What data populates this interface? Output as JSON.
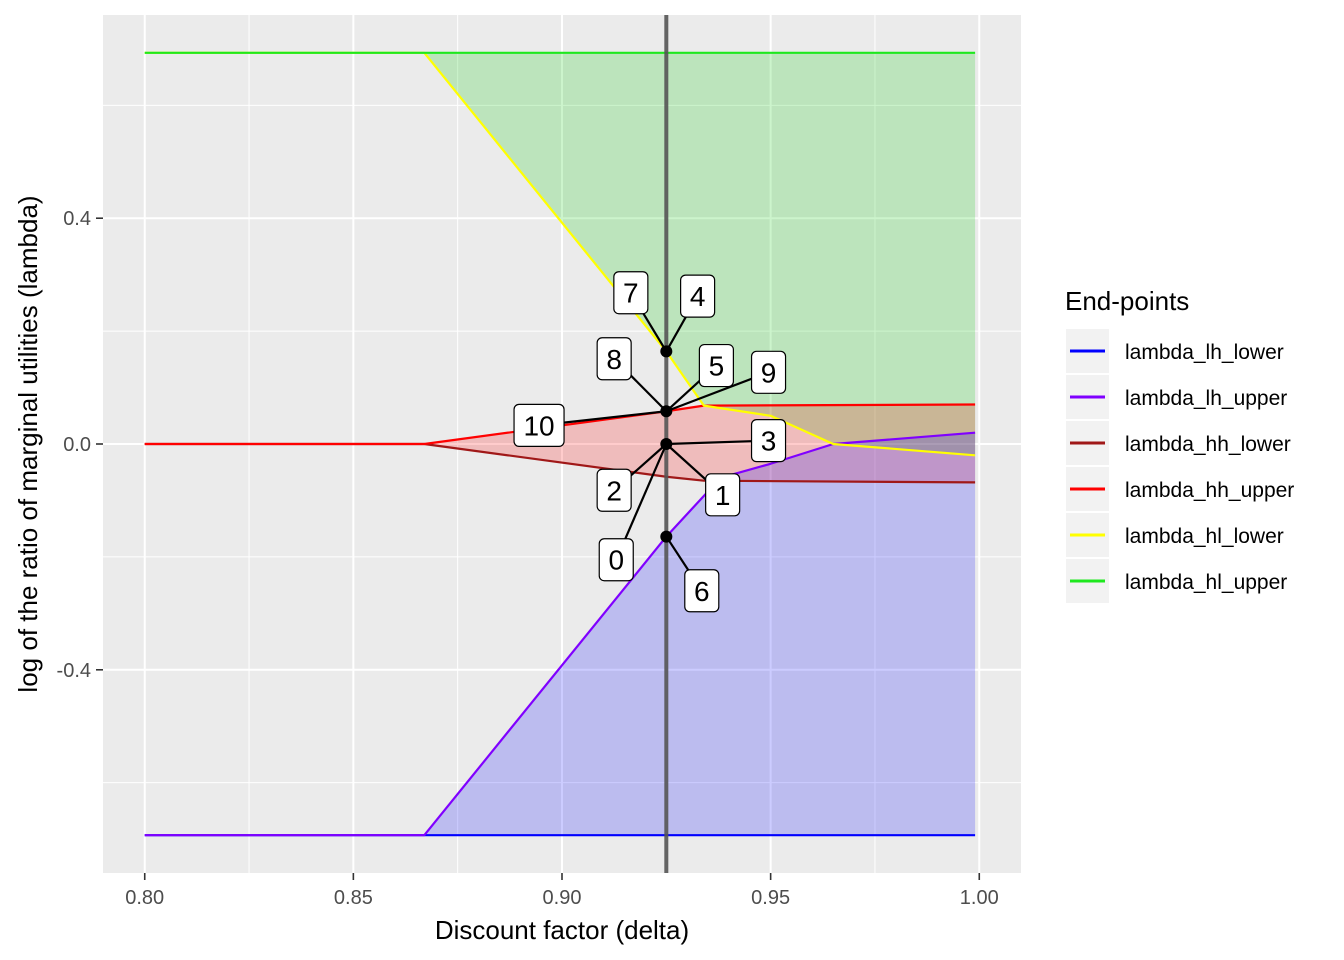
{
  "chart_data": {
    "type": "area",
    "xlabel": "Discount factor (delta)",
    "ylabel": "log of the ratio of marginal utilities (lambda)",
    "xlim": [
      0.79,
      1.01
    ],
    "ylim": [
      -0.76,
      0.76
    ],
    "x_ticks": [
      0.8,
      0.85,
      0.9,
      0.95,
      1.0
    ],
    "x_tick_labels": [
      "0.80",
      "0.85",
      "0.90",
      "0.95",
      "1.00"
    ],
    "y_ticks": [
      -0.4,
      0.0,
      0.4
    ],
    "y_tick_labels": [
      "-0.4",
      "0.0",
      "0.4"
    ],
    "grid": true,
    "legend": {
      "title": "End-points",
      "position": "right"
    },
    "vline_x": 0.925,
    "series": [
      {
        "name": "lambda_lh_lower",
        "color": "#0000FF",
        "points": [
          [
            0.8,
            -0.693
          ],
          [
            0.999,
            -0.693
          ]
        ]
      },
      {
        "name": "lambda_lh_upper",
        "color": "#8000FF",
        "points": [
          [
            0.8,
            -0.693
          ],
          [
            0.867,
            -0.693
          ],
          [
            0.925,
            -0.164
          ],
          [
            0.938,
            -0.06
          ],
          [
            0.95,
            -0.035
          ],
          [
            0.965,
            0.0
          ],
          [
            0.999,
            0.02
          ]
        ]
      },
      {
        "name": "lambda_hh_lower",
        "color": "#A01818",
        "points": [
          [
            0.8,
            0.0
          ],
          [
            0.867,
            0.0
          ],
          [
            0.925,
            -0.058
          ],
          [
            0.934,
            -0.065
          ],
          [
            0.999,
            -0.068
          ]
        ]
      },
      {
        "name": "lambda_hh_upper",
        "color": "#FF0000",
        "points": [
          [
            0.8,
            0.0
          ],
          [
            0.867,
            0.0
          ],
          [
            0.925,
            0.058
          ],
          [
            0.934,
            0.068
          ],
          [
            0.999,
            0.07
          ]
        ]
      },
      {
        "name": "lambda_hl_lower",
        "color": "#FFFF00",
        "points": [
          [
            0.8,
            0.693
          ],
          [
            0.867,
            0.693
          ],
          [
            0.925,
            0.164
          ],
          [
            0.934,
            0.068
          ],
          [
            0.95,
            0.05
          ],
          [
            0.965,
            0.0
          ],
          [
            0.999,
            -0.02
          ]
        ]
      },
      {
        "name": "lambda_hl_upper",
        "color": "#1EE81E",
        "points": [
          [
            0.8,
            0.693
          ],
          [
            0.999,
            0.693
          ]
        ]
      }
    ],
    "ribbons": [
      {
        "fill": "#00C800",
        "opacity": 0.2,
        "upper": [
          [
            0.867,
            0.693
          ],
          [
            0.999,
            0.693
          ]
        ],
        "lower": [
          [
            0.867,
            0.693
          ],
          [
            0.925,
            0.164
          ],
          [
            0.934,
            0.068
          ],
          [
            0.95,
            0.05
          ],
          [
            0.965,
            0.0
          ],
          [
            0.999,
            -0.02
          ]
        ]
      },
      {
        "fill": "#FF0000",
        "opacity": 0.2,
        "upper": [
          [
            0.867,
            0.0
          ],
          [
            0.925,
            0.058
          ],
          [
            0.934,
            0.068
          ],
          [
            0.999,
            0.07
          ]
        ],
        "lower": [
          [
            0.867,
            0.0
          ],
          [
            0.925,
            -0.058
          ],
          [
            0.934,
            -0.065
          ],
          [
            0.999,
            -0.068
          ]
        ]
      },
      {
        "fill": "#0000FF",
        "opacity": 0.2,
        "upper": [
          [
            0.867,
            -0.693
          ],
          [
            0.925,
            -0.164
          ],
          [
            0.938,
            -0.06
          ],
          [
            0.95,
            -0.035
          ],
          [
            0.965,
            0.0
          ],
          [
            0.999,
            0.02
          ]
        ],
        "lower": [
          [
            0.867,
            -0.693
          ],
          [
            0.999,
            -0.693
          ]
        ]
      }
    ],
    "points": [
      {
        "x": 0.925,
        "y": 0.164
      },
      {
        "x": 0.925,
        "y": 0.058
      },
      {
        "x": 0.925,
        "y": 0.0
      },
      {
        "x": 0.925,
        "y": -0.164
      }
    ],
    "annotations": [
      {
        "label": "0",
        "x": 0.925,
        "y": 0.0,
        "lx": 0.913,
        "ly": -0.205
      },
      {
        "label": "1",
        "x": 0.925,
        "y": 0.0,
        "lx": 0.9385,
        "ly": -0.09
      },
      {
        "label": "2",
        "x": 0.925,
        "y": 0.0,
        "lx": 0.9125,
        "ly": -0.082
      },
      {
        "label": "3",
        "x": 0.925,
        "y": 0.0,
        "lx": 0.9495,
        "ly": 0.006
      },
      {
        "label": "4",
        "x": 0.925,
        "y": 0.164,
        "lx": 0.9325,
        "ly": 0.262
      },
      {
        "label": "5",
        "x": 0.925,
        "y": 0.058,
        "lx": 0.937,
        "ly": 0.139
      },
      {
        "label": "6",
        "x": 0.925,
        "y": -0.164,
        "lx": 0.9335,
        "ly": -0.26
      },
      {
        "label": "7",
        "x": 0.925,
        "y": 0.164,
        "lx": 0.9165,
        "ly": 0.268
      },
      {
        "label": "8",
        "x": 0.925,
        "y": 0.058,
        "lx": 0.9125,
        "ly": 0.151
      },
      {
        "label": "9",
        "x": 0.925,
        "y": 0.058,
        "lx": 0.9495,
        "ly": 0.127
      },
      {
        "label": "10",
        "x": 0.925,
        "y": 0.058,
        "lx": 0.8945,
        "ly": 0.033
      }
    ]
  }
}
